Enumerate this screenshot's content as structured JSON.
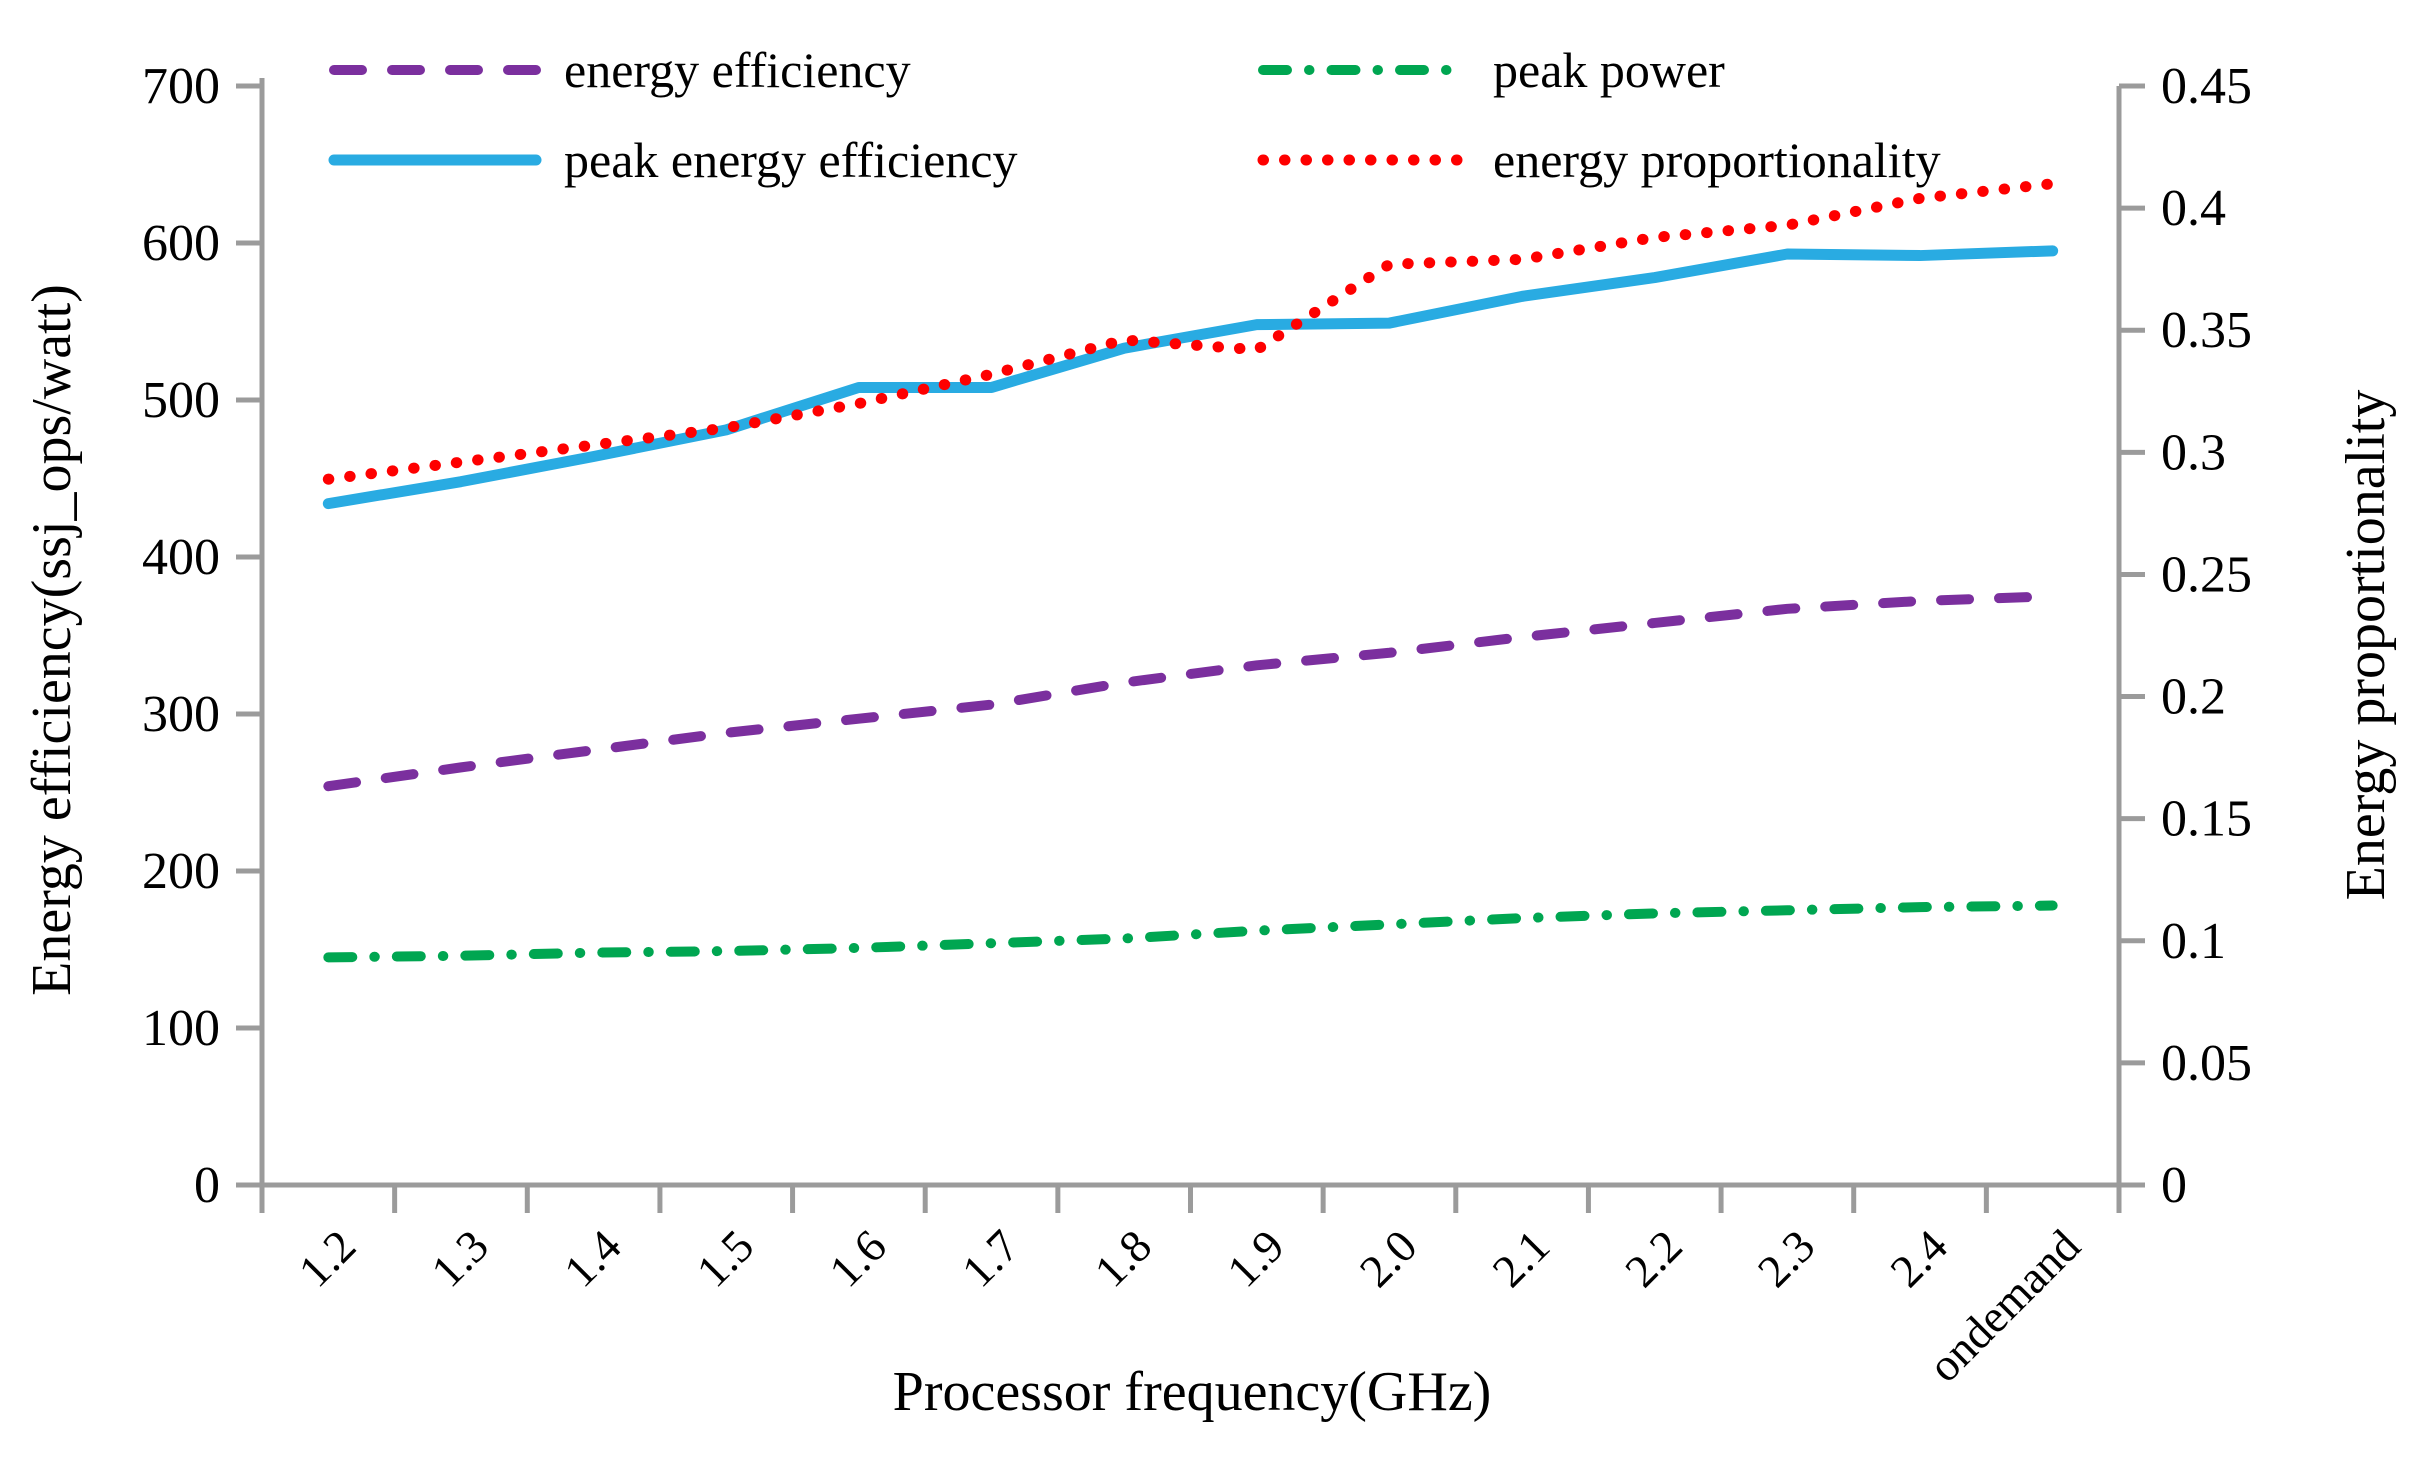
{
  "figure": {
    "background": "#ffffff",
    "text_color": "#000000",
    "axis_color": "#9b9b9b"
  },
  "chart_data": {
    "type": "line",
    "title": "",
    "xlabel": "Processor frequency(GHz)",
    "categories": [
      "1.2",
      "1.3",
      "1.4",
      "1.5",
      "1.6",
      "1.7",
      "1.8",
      "1.9",
      "2.0",
      "2.1",
      "2.2",
      "2.3",
      "2.4",
      "ondemand"
    ],
    "left_axis": {
      "title": "Energy efficiency(ssj_ops/watt)",
      "min": 0,
      "max": 700,
      "ticks": [
        "0",
        "100",
        "200",
        "300",
        "400",
        "500",
        "600",
        "700"
      ]
    },
    "right_axis": {
      "title": "Energy proportionality",
      "min": 0,
      "max": 0.45,
      "ticks": [
        "0",
        "0.05",
        "0.1",
        "0.15",
        "0.2",
        "0.25",
        "0.3",
        "0.35",
        "0.4",
        "0.45"
      ]
    },
    "legend": {
      "position": "top",
      "columns": 2,
      "order": [
        0,
        1,
        2,
        3
      ]
    },
    "grid": "off",
    "series": [
      {
        "name": "energy efficiency",
        "axis": "left",
        "color": "#7b2f9e",
        "style": "dashed",
        "values": [
          254,
          266,
          277,
          288,
          297,
          306,
          320,
          331,
          339,
          349,
          358,
          367,
          372,
          375
        ]
      },
      {
        "name": "peak energy efficiency",
        "axis": "left",
        "color": "#29abe2",
        "style": "solid",
        "values": [
          434,
          448,
          464,
          481,
          508,
          508,
          533,
          548,
          549,
          566,
          578,
          593,
          592,
          595
        ]
      },
      {
        "name": "peak power",
        "axis": "left",
        "color": "#00a651",
        "style": "dashdot",
        "values": [
          145,
          146,
          148,
          149,
          151,
          154,
          157,
          162,
          166,
          170,
          173,
          175,
          177,
          178
        ]
      },
      {
        "name": "energy proportionality",
        "axis": "right",
        "color": "#fe0000",
        "style": "dotted",
        "values": [
          0.289,
          0.296,
          0.303,
          0.31,
          0.32,
          0.332,
          0.346,
          0.342,
          0.377,
          0.379,
          0.388,
          0.393,
          0.404,
          0.41
        ]
      }
    ]
  }
}
